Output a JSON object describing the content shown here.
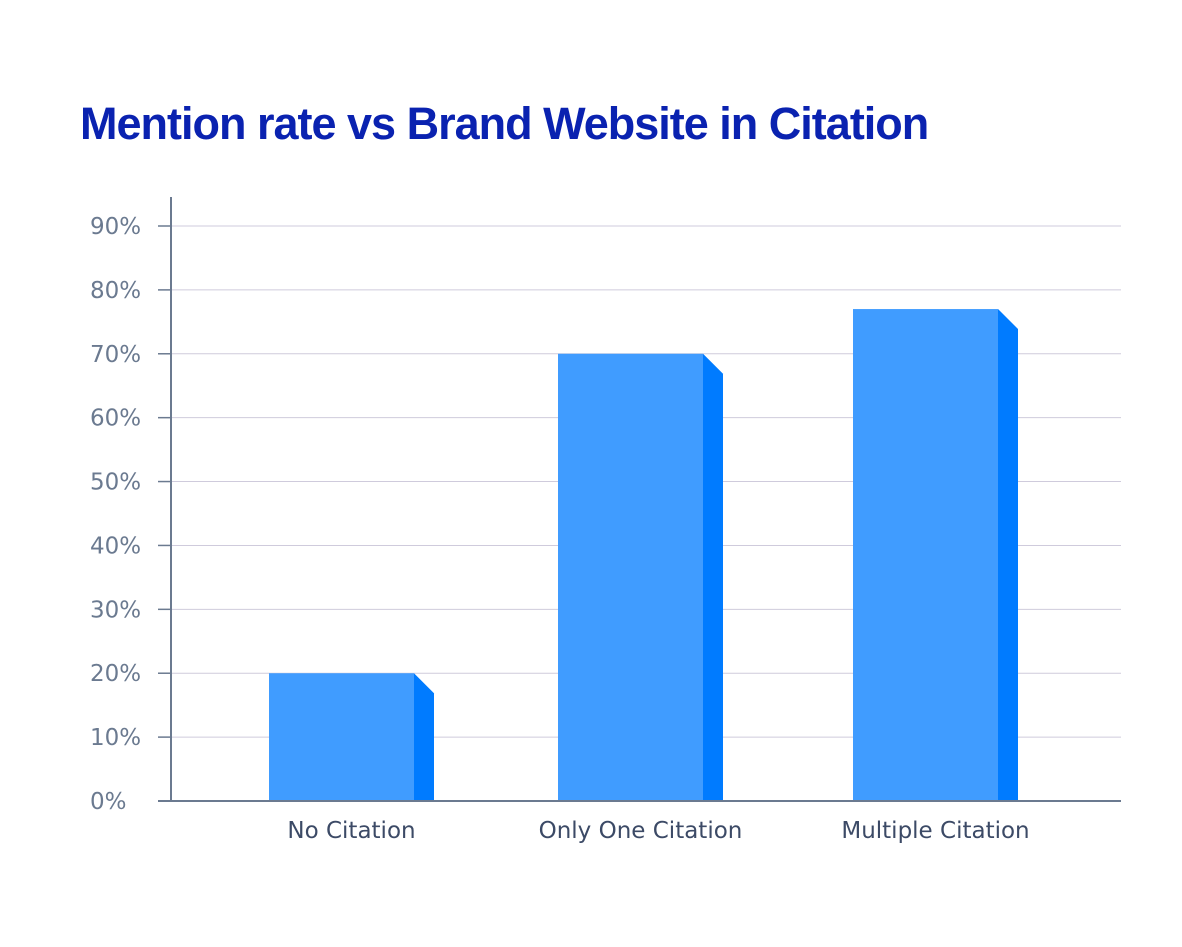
{
  "chart_data": {
    "type": "bar",
    "title": "Mention rate vs Brand Website in Citation",
    "categories": [
      "No Citation",
      "Only One Citation",
      "Multiple Citation"
    ],
    "values": [
      20,
      70,
      77
    ],
    "xlabel": "",
    "ylabel": "",
    "ylim": [
      0,
      90
    ],
    "yticks": [
      0,
      10,
      20,
      30,
      40,
      50,
      60,
      70,
      80,
      90
    ],
    "ytick_labels": [
      "0%",
      "10%",
      "20%",
      "30%",
      "40%",
      "50%",
      "60%",
      "70%",
      "80%",
      "90%"
    ],
    "grid": true,
    "colors": {
      "bar_face": "#409cff",
      "bar_side": "#007bff",
      "title": "#0a22b0",
      "grid": "#cfcbdc",
      "axis": "#6b7a90"
    }
  }
}
